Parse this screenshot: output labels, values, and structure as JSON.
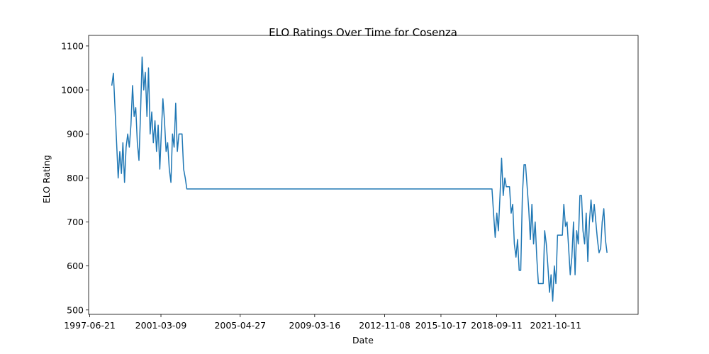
{
  "chart_data": {
    "type": "line",
    "title": "ELO Ratings Over Time for Cosenza",
    "x_label": "Date",
    "y_label": "ELO Rating",
    "x": [
      "1998-08-15",
      "1998-09-15",
      "1998-10-15",
      "1998-11-15",
      "1998-12-15",
      "1999-01-15",
      "1999-02-15",
      "1999-03-15",
      "1999-04-15",
      "1999-05-15",
      "1999-06-15",
      "1999-07-15",
      "1999-08-15",
      "1999-09-15",
      "1999-10-15",
      "1999-11-15",
      "1999-12-15",
      "2000-01-15",
      "2000-02-15",
      "2000-03-15",
      "2000-04-15",
      "2000-05-15",
      "2000-06-15",
      "2000-07-15",
      "2000-08-15",
      "2000-09-15",
      "2000-10-15",
      "2000-11-15",
      "2000-12-15",
      "2001-01-15",
      "2001-02-15",
      "2001-03-15",
      "2001-04-15",
      "2001-05-15",
      "2001-06-15",
      "2001-07-15",
      "2001-08-15",
      "2001-09-15",
      "2001-10-15",
      "2001-11-15",
      "2001-12-15",
      "2002-01-15",
      "2002-02-15",
      "2002-03-15",
      "2002-04-15",
      "2002-05-15",
      "2002-06-15",
      "2002-07-15",
      "2018-06-15",
      "2018-07-15",
      "2018-08-15",
      "2018-09-15",
      "2018-10-15",
      "2018-11-15",
      "2018-12-15",
      "2019-01-15",
      "2019-02-15",
      "2019-03-15",
      "2019-04-15",
      "2019-05-15",
      "2019-06-15",
      "2019-07-15",
      "2019-08-15",
      "2019-09-15",
      "2019-10-15",
      "2019-11-15",
      "2019-12-15",
      "2020-01-15",
      "2020-02-15",
      "2020-03-15",
      "2020-04-15",
      "2020-05-15",
      "2020-06-15",
      "2020-07-15",
      "2020-08-15",
      "2020-09-15",
      "2020-10-15",
      "2020-11-15",
      "2020-12-15",
      "2021-01-15",
      "2021-02-15",
      "2021-03-15",
      "2021-04-15",
      "2021-05-15",
      "2021-06-15",
      "2021-07-15",
      "2021-08-15",
      "2021-09-15",
      "2021-10-15",
      "2021-11-15",
      "2021-12-15",
      "2022-01-15",
      "2022-02-15",
      "2022-03-15",
      "2022-04-15",
      "2022-05-15",
      "2022-06-15",
      "2022-07-15",
      "2022-08-15",
      "2022-09-15",
      "2022-10-15",
      "2022-11-15",
      "2022-12-15",
      "2023-01-15",
      "2023-02-15",
      "2023-03-15",
      "2023-04-15",
      "2023-05-15",
      "2023-06-15",
      "2023-07-15",
      "2023-08-15",
      "2023-09-15",
      "2023-10-15",
      "2023-11-15",
      "2023-12-15",
      "2024-01-15",
      "2024-02-15",
      "2024-03-15",
      "2024-04-15",
      "2024-05-15",
      "2024-06-15"
    ],
    "series": [
      {
        "color": "#1f77b4",
        "values": [
          1010,
          1038,
          960,
          880,
          800,
          860,
          810,
          880,
          790,
          870,
          900,
          870,
          920,
          1010,
          940,
          960,
          880,
          840,
          950,
          1075,
          1000,
          1040,
          940,
          1050,
          900,
          950,
          880,
          930,
          860,
          920,
          820,
          900,
          980,
          930,
          860,
          880,
          820,
          790,
          900,
          870,
          970,
          860,
          900,
          900,
          900,
          820,
          800,
          775,
          775,
          720,
          665,
          720,
          680,
          760,
          845,
          760,
          800,
          780,
          780,
          780,
          720,
          740,
          650,
          620,
          660,
          590,
          590,
          760,
          830,
          830,
          780,
          730,
          660,
          740,
          650,
          700,
          620,
          560,
          560,
          560,
          560,
          680,
          650,
          600,
          540,
          580,
          520,
          600,
          560,
          670,
          670,
          670,
          670,
          740,
          690,
          700,
          640,
          580,
          620,
          700,
          580,
          680,
          650,
          760,
          760,
          680,
          650,
          720,
          610,
          700,
          750,
          700,
          740,
          700,
          660,
          630,
          640,
          700,
          730,
          660,
          630
        ]
      }
    ],
    "xlim": [
      "1997-05-31",
      "2026-01-28"
    ],
    "xticks": [
      "1997-06-21",
      "2001-03-09",
      "2005-04-27",
      "2009-03-16",
      "2012-11-08",
      "2015-10-17",
      "2018-09-11",
      "2021-10-11"
    ],
    "ylim": [
      490,
      1124
    ],
    "yticks": [
      500,
      600,
      700,
      800,
      900,
      1000,
      1100
    ]
  }
}
